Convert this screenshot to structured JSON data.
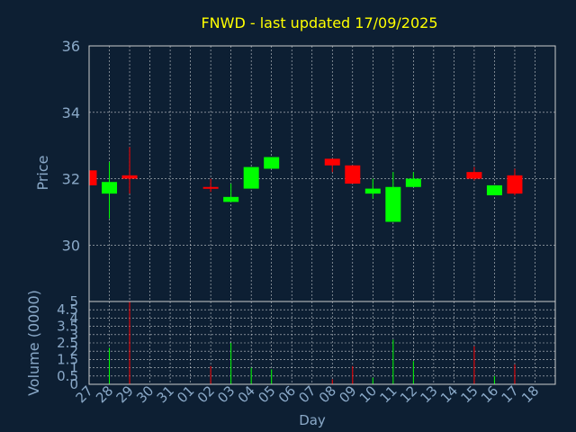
{
  "chart_data": {
    "type": "candlestick",
    "title": "FNWD - last updated 17/09/2025",
    "ylabel": "Price",
    "volume_label": "Volume (0000)",
    "xlabel": "Day",
    "ylim": [
      28.3,
      36
    ],
    "yticks": [
      "30",
      "32",
      "34",
      "36"
    ],
    "volume_ylim": [
      0,
      5
    ],
    "volume_yticks": [
      "0",
      "0.5",
      "1",
      "1.5",
      "2",
      "2.5",
      "3",
      "3.5",
      "4",
      "4.5",
      "5"
    ],
    "day_labels": [
      "27",
      "28",
      "29",
      "30",
      "31",
      "01",
      "02",
      "03",
      "04",
      "05",
      "06",
      "07",
      "08",
      "09",
      "10",
      "11",
      "12",
      "13",
      "14",
      "15",
      "16",
      "17",
      "18"
    ],
    "grid": true,
    "colors": {
      "up": "#00ff00",
      "down": "#ff0000",
      "background": "#0d1f33",
      "plot_border": "#cccccc",
      "grid": "#ffffff",
      "title": "#ffff00",
      "label": "#8aa9c8"
    },
    "candles": [
      {
        "day": "27",
        "open": 32.25,
        "high": 32.25,
        "low": 31.8,
        "close": 31.8
      },
      {
        "day": "28",
        "open": 31.55,
        "high": 32.5,
        "low": 30.8,
        "close": 31.9
      },
      {
        "day": "29",
        "open": 32.1,
        "high": 32.95,
        "low": 31.55,
        "close": 32.0
      },
      {
        "day": "02",
        "open": 31.75,
        "high": 32.0,
        "low": 31.6,
        "close": 31.7
      },
      {
        "day": "03",
        "open": 31.3,
        "high": 31.85,
        "low": 31.3,
        "close": 31.45
      },
      {
        "day": "04",
        "open": 31.7,
        "high": 32.35,
        "low": 31.7,
        "close": 32.35
      },
      {
        "day": "05",
        "open": 32.3,
        "high": 32.65,
        "low": 32.3,
        "close": 32.65
      },
      {
        "day": "08",
        "open": 32.6,
        "high": 32.6,
        "low": 32.2,
        "close": 32.4
      },
      {
        "day": "09",
        "open": 32.4,
        "high": 32.4,
        "low": 31.85,
        "close": 31.85
      },
      {
        "day": "10",
        "open": 31.55,
        "high": 32.0,
        "low": 31.4,
        "close": 31.7
      },
      {
        "day": "11",
        "open": 30.7,
        "high": 32.2,
        "low": 30.7,
        "close": 31.75
      },
      {
        "day": "12",
        "open": 31.75,
        "high": 32.2,
        "low": 31.75,
        "close": 32.0
      },
      {
        "day": "15",
        "open": 32.2,
        "high": 32.35,
        "low": 31.95,
        "close": 32.0
      },
      {
        "day": "16",
        "open": 31.5,
        "high": 31.8,
        "low": 31.5,
        "close": 31.8
      },
      {
        "day": "17",
        "open": 32.1,
        "high": 32.3,
        "low": 31.5,
        "close": 31.55
      }
    ],
    "volume": [
      {
        "day": "28",
        "value": 2.2,
        "direction": "up"
      },
      {
        "day": "29",
        "value": 5.0,
        "direction": "down"
      },
      {
        "day": "02",
        "value": 1.1,
        "direction": "down"
      },
      {
        "day": "03",
        "value": 2.5,
        "direction": "up"
      },
      {
        "day": "04",
        "value": 1.0,
        "direction": "up"
      },
      {
        "day": "05",
        "value": 0.9,
        "direction": "up"
      },
      {
        "day": "08",
        "value": 0.3,
        "direction": "down"
      },
      {
        "day": "09",
        "value": 1.1,
        "direction": "down"
      },
      {
        "day": "10",
        "value": 0.4,
        "direction": "up"
      },
      {
        "day": "11",
        "value": 2.7,
        "direction": "up"
      },
      {
        "day": "12",
        "value": 1.4,
        "direction": "up"
      },
      {
        "day": "15",
        "value": 2.3,
        "direction": "down"
      },
      {
        "day": "16",
        "value": 0.5,
        "direction": "up"
      },
      {
        "day": "17",
        "value": 1.2,
        "direction": "down"
      }
    ]
  }
}
